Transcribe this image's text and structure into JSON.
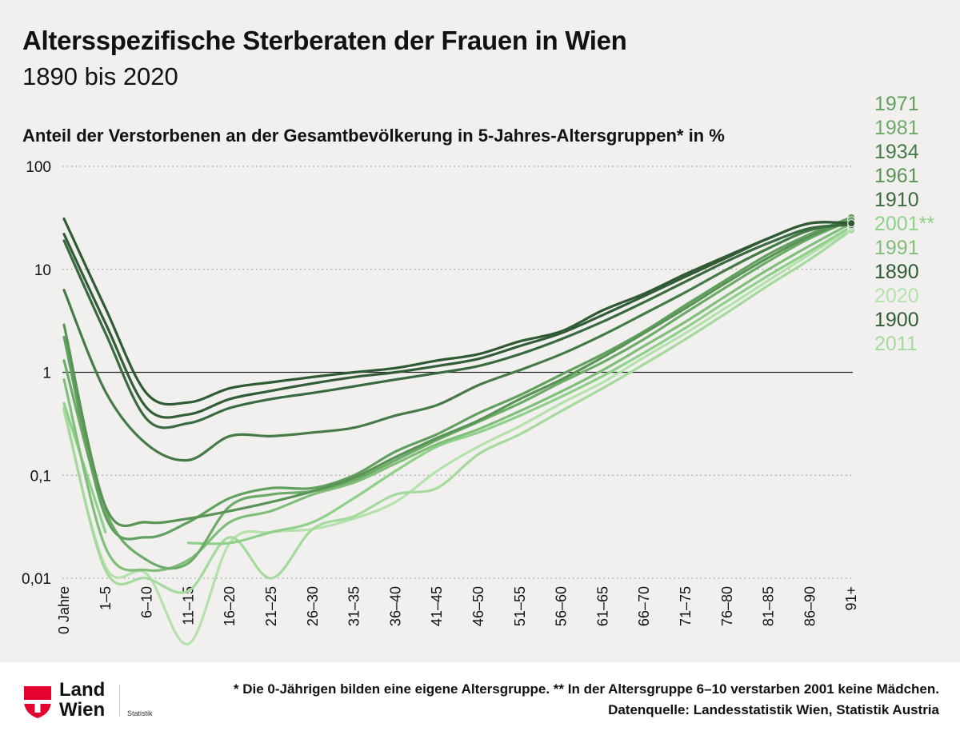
{
  "title": "Altersspezifische Sterberaten der Frauen in Wien",
  "subtitle": "1890 bis 2020",
  "footnote": "* Die 0-Jährigen bilden eine eigene Altersgruppe. ** In der Altersgruppe 6–10 verstarben 2001 keine Mädchen.",
  "source": "Datenquelle: Landesstatistik Wien, Statistik Austria",
  "logo": {
    "line1": "Land",
    "line2": "Wien",
    "dept": "Statistik",
    "shield_color": "#e4032e"
  },
  "colors": {
    "reference_line": "#222222",
    "grid": "#8a8a8a",
    "background": "#f1f0ef"
  },
  "chart_data": {
    "type": "line",
    "title": "",
    "ylabel": "Anteil der Verstorbenen an der Gesamtbevölkerung in 5-Jahres-Altersgruppen* in %",
    "xlabel": "",
    "y_scale": "log",
    "ylim": [
      0.01,
      100
    ],
    "y_ticks": [
      "100",
      "10",
      "1",
      "0,1",
      "0,01"
    ],
    "y_tick_values": [
      100,
      10,
      1,
      0.1,
      0.01
    ],
    "reference_line": 1,
    "grid": "dotted horizontal",
    "legend_position": "right",
    "categories": [
      "0 Jahre",
      "1–5",
      "6–10",
      "11–15",
      "16–20",
      "21–25",
      "26–30",
      "31–35",
      "36–40",
      "41–45",
      "46–50",
      "51–55",
      "56–60",
      "61–65",
      "66–70",
      "71–75",
      "76–80",
      "81–85",
      "86–90",
      "91+"
    ],
    "legend_order": [
      "1971",
      "1981",
      "1934",
      "1961",
      "1910",
      "2001**",
      "1991",
      "1890",
      "2020",
      "1900",
      "2011"
    ],
    "series": [
      {
        "name": "1890",
        "color": "#2f5a34",
        "values": [
          31,
          4.2,
          0.62,
          0.51,
          0.7,
          0.8,
          0.9,
          1.0,
          1.1,
          1.3,
          1.5,
          2.0,
          2.5,
          4.0,
          5.8,
          9.0,
          13.5,
          20,
          28,
          28
        ]
      },
      {
        "name": "1900",
        "color": "#335d37",
        "values": [
          22,
          3.0,
          0.45,
          0.39,
          0.55,
          0.66,
          0.78,
          0.9,
          1.0,
          1.15,
          1.35,
          1.8,
          2.4,
          3.6,
          5.5,
          8.5,
          13,
          20,
          28,
          28
        ]
      },
      {
        "name": "1910",
        "color": "#3a6a3f",
        "values": [
          19,
          2.4,
          0.35,
          0.32,
          0.45,
          0.55,
          0.63,
          0.73,
          0.85,
          0.98,
          1.15,
          1.5,
          2.1,
          3.1,
          4.8,
          7.6,
          12,
          18,
          25,
          27
        ]
      },
      {
        "name": "1934",
        "color": "#467a48",
        "values": [
          6.3,
          0.65,
          0.2,
          0.14,
          0.24,
          0.24,
          0.26,
          0.29,
          0.38,
          0.48,
          0.75,
          1.05,
          1.5,
          2.3,
          3.7,
          6.0,
          10,
          16,
          24,
          28
        ]
      },
      {
        "name": "1961",
        "color": "#599456",
        "values": [
          2.9,
          0.05,
          0.035,
          0.038,
          0.045,
          0.055,
          0.07,
          0.095,
          0.15,
          0.23,
          0.34,
          0.55,
          0.85,
          1.4,
          2.4,
          4.2,
          7.5,
          13,
          21,
          30
        ]
      },
      {
        "name": "1971",
        "color": "#62a060",
        "values": [
          2.2,
          0.04,
          0.025,
          0.035,
          0.06,
          0.075,
          0.075,
          0.1,
          0.17,
          0.25,
          0.4,
          0.6,
          0.95,
          1.5,
          2.5,
          4.5,
          8,
          14,
          22,
          32
        ]
      },
      {
        "name": "1981",
        "color": "#6cab68",
        "values": [
          1.3,
          0.045,
          0.015,
          0.014,
          0.05,
          0.065,
          0.07,
          0.09,
          0.14,
          0.22,
          0.33,
          0.5,
          0.8,
          1.25,
          2.1,
          3.8,
          6.8,
          12,
          20,
          30
        ]
      },
      {
        "name": "1991",
        "color": "#80be7a",
        "values": [
          0.85,
          0.02,
          0.012,
          0.015,
          0.035,
          0.045,
          0.065,
          0.085,
          0.13,
          0.2,
          0.28,
          0.42,
          0.65,
          1.05,
          1.8,
          3.1,
          5.6,
          10,
          17,
          28
        ]
      },
      {
        "name": "2001**",
        "color": "#8fd08a",
        "values": [
          0.5,
          0.028,
          null,
          0.022,
          0.022,
          0.028,
          0.035,
          0.06,
          0.11,
          0.19,
          0.26,
          0.38,
          0.58,
          0.92,
          1.55,
          2.7,
          4.9,
          8.7,
          15,
          26
        ]
      },
      {
        "name": "2011",
        "color": "#a5d99d",
        "values": [
          0.45,
          0.012,
          0.01,
          0.0075,
          0.025,
          0.01,
          0.03,
          0.04,
          0.065,
          0.075,
          0.16,
          0.25,
          0.42,
          0.7,
          1.2,
          2.1,
          3.8,
          7.0,
          12.5,
          24
        ]
      },
      {
        "name": "2020",
        "color": "#b5e2ac",
        "values": [
          0.42,
          0.013,
          0.011,
          0.0023,
          0.022,
          0.028,
          0.03,
          0.038,
          0.055,
          0.11,
          0.19,
          0.3,
          0.5,
          0.8,
          1.4,
          2.4,
          4.3,
          7.8,
          14,
          25
        ]
      }
    ]
  }
}
